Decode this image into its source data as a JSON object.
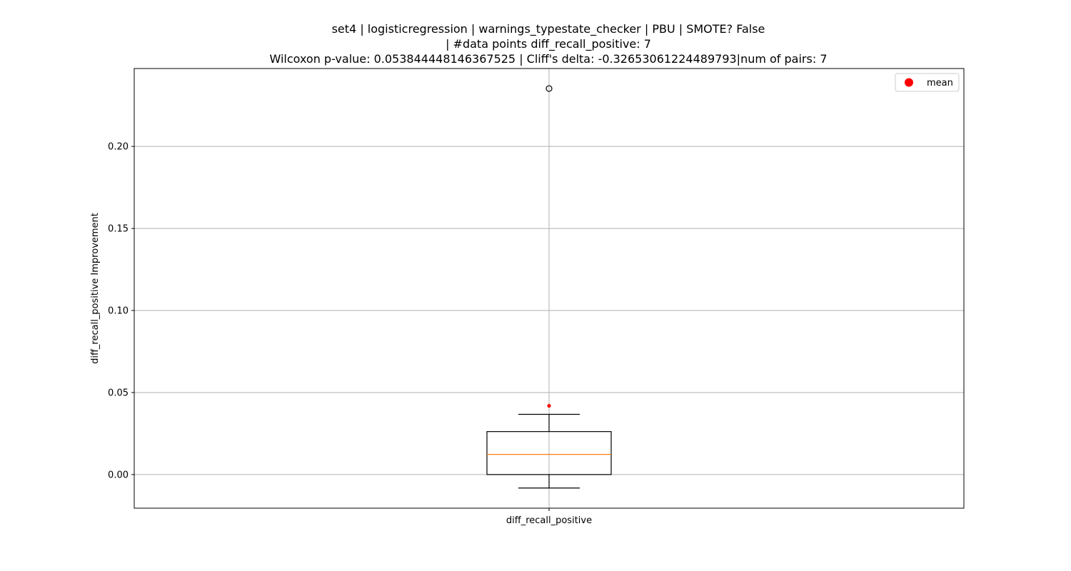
{
  "chart_data": {
    "type": "box",
    "title_lines": [
      "set4 | logisticregression | warnings_typestate_checker | PBU | SMOTE? False",
      "| #data points diff_recall_positive: 7",
      "Wilcoxon p-value: 0.053844448146367525 | Cliff's delta: -0.32653061224489793|num of pairs: 7"
    ],
    "ylabel": "diff_recall_positive Improvement",
    "categories": [
      "diff_recall_positive"
    ],
    "ylim": [
      -0.0205,
      0.2475
    ],
    "yticks": [
      0.0,
      0.05,
      0.1,
      0.15,
      0.2
    ],
    "ytick_labels": [
      "0.00",
      "0.05",
      "0.10",
      "0.15",
      "0.20"
    ],
    "grid": true,
    "legend": {
      "placement": "top-right",
      "entries": [
        {
          "label": "mean",
          "color": "#ff0000",
          "marker": "circle"
        }
      ]
    },
    "boxes": [
      {
        "name": "diff_recall_positive",
        "whisker_low": -0.0082,
        "q1": 0.0,
        "median": 0.0123,
        "q3": 0.0262,
        "whisker_high": 0.0367,
        "mean": 0.0419,
        "outliers": [
          0.2353
        ]
      }
    ],
    "colors": {
      "box": "#000000",
      "median": "#ff7f0e",
      "mean": "#ff0000",
      "grid": "#b0b0b0"
    }
  }
}
